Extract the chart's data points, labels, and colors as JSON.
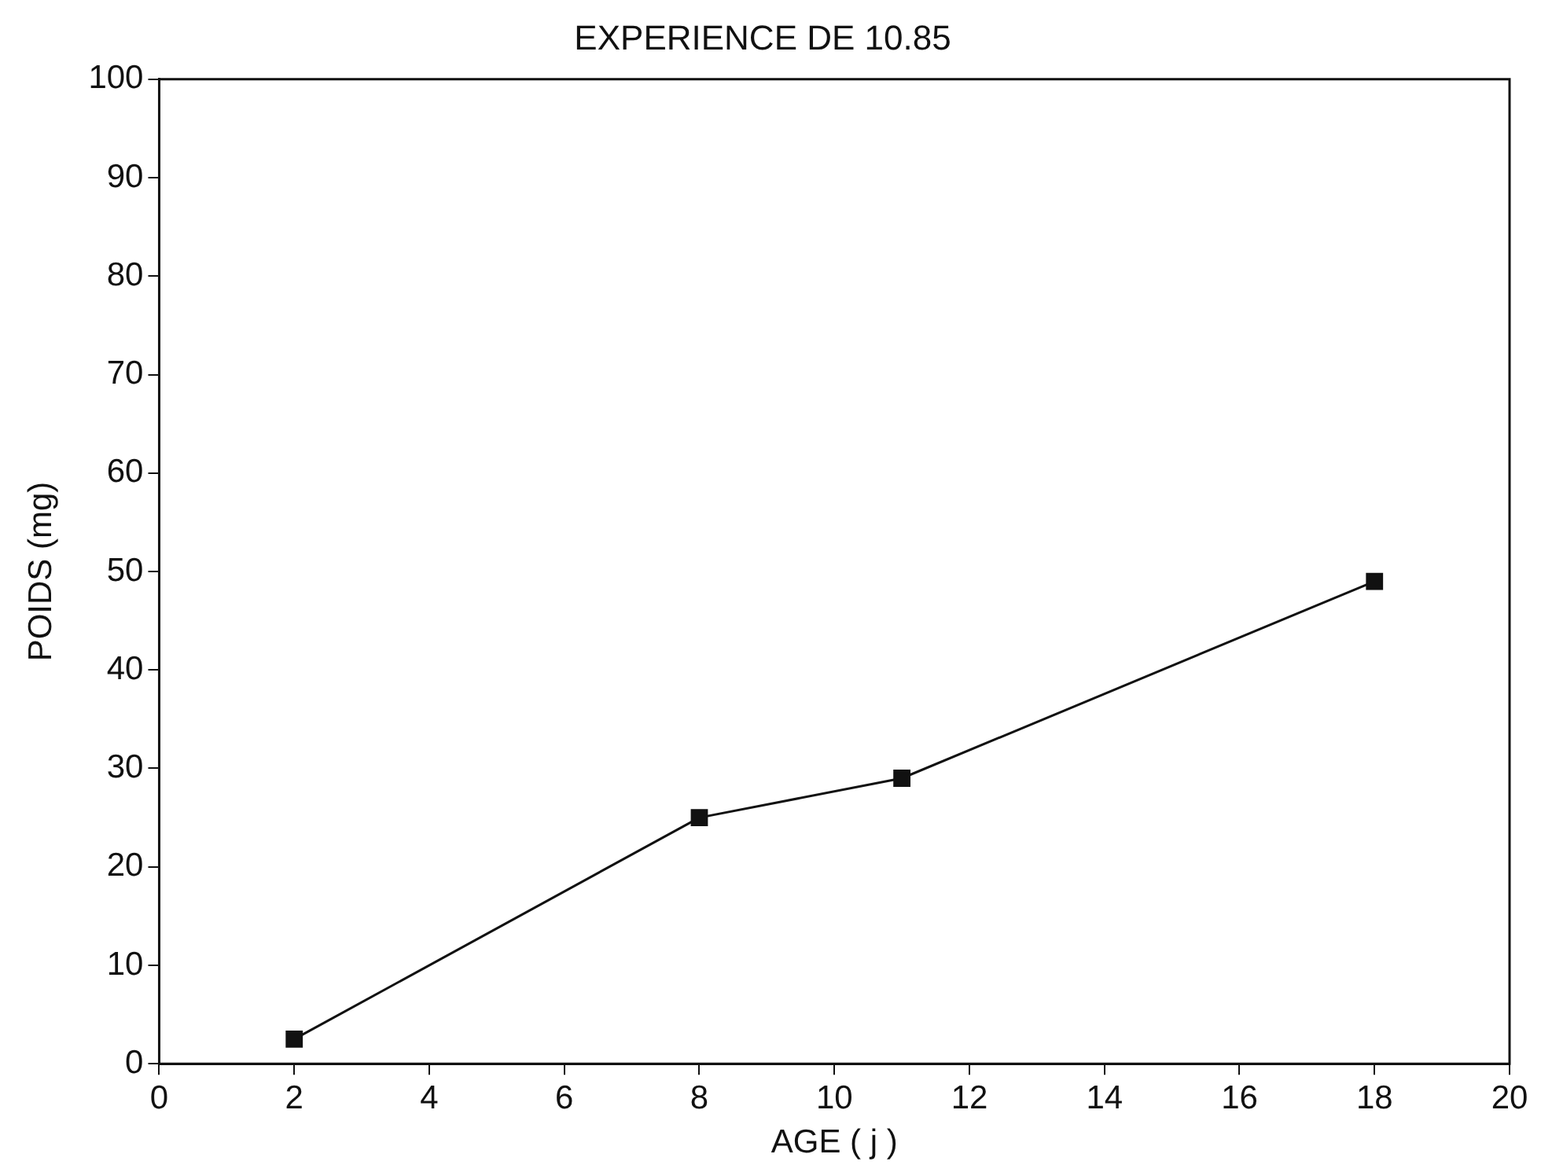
{
  "chart_data": {
    "type": "line",
    "title": "EXPERIENCE DE 10.85",
    "xlabel": "AGE ( j )",
    "ylabel": "POIDS (mg)",
    "x": [
      2,
      8,
      11,
      18
    ],
    "series": [
      {
        "color": "#111111",
        "values": [
          2.5,
          25,
          29,
          49
        ]
      }
    ],
    "xlim": [
      0,
      20
    ],
    "xticks": [
      0,
      2,
      4,
      6,
      8,
      10,
      12,
      14,
      16,
      18,
      20
    ],
    "ylim": [
      0,
      100
    ],
    "yticks": [
      0,
      10,
      20,
      30,
      40,
      50,
      60,
      70,
      80,
      90,
      100
    ],
    "grid": false,
    "legend": false,
    "marker": "square",
    "line_style": "solid"
  }
}
